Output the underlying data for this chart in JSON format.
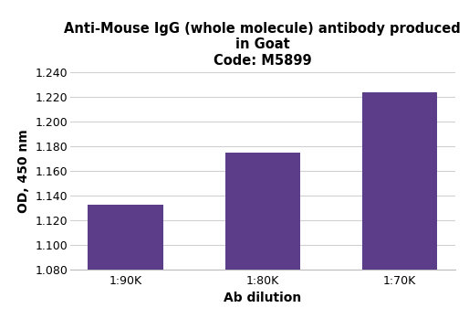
{
  "categories": [
    "1:90K",
    "1:80K",
    "1:70K"
  ],
  "values": [
    1.133,
    1.175,
    1.224
  ],
  "bar_color": "#5b3d8a",
  "title_line1": "Anti-Mouse IgG (whole molecule) antibody produced",
  "title_line2": "in Goat",
  "title_line3": "Code: M5899",
  "xlabel": "Ab dilution",
  "ylabel": "OD, 450 nm",
  "ylim": [
    1.08,
    1.24
  ],
  "yticks": [
    1.08,
    1.1,
    1.12,
    1.14,
    1.16,
    1.18,
    1.2,
    1.22,
    1.24
  ],
  "title_fontsize": 10.5,
  "axis_label_fontsize": 10,
  "tick_fontsize": 9,
  "bar_width": 0.55,
  "background_color": "#ffffff",
  "grid_color": "#d0d0d0"
}
